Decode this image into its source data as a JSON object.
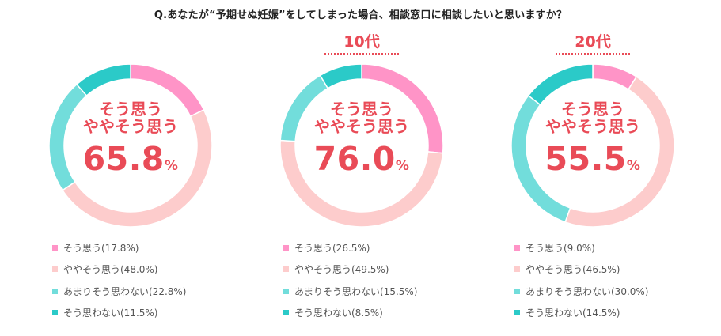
{
  "title": "Q.あなたが“予期せぬ妊娠”をしてしまった場合、相談窓口に相談したいと思いますか？",
  "colors": {
    "sou_omou": "#ff94c7",
    "yaya_sou_omou": "#fdcccc",
    "amari": "#72dddb",
    "omowanai": "#2bcac8",
    "accent": "#e94b57"
  },
  "chart_data": [
    {
      "type": "pie",
      "heading": "",
      "center_line1": "そう思う",
      "center_line2": "ややそう思う",
      "center_value": "65.8",
      "center_unit": "%",
      "categories": [
        "そう思う",
        "ややそう思う",
        "あまりそう思わない",
        "そう思わない"
      ],
      "values": [
        17.8,
        48.0,
        22.8,
        11.5
      ],
      "legend": [
        "そう思う(17.8%)",
        "ややそう思う(48.0%)",
        "あまりそう思わない(22.8%)",
        "そう思わない(11.5%)"
      ]
    },
    {
      "type": "pie",
      "heading": "10代",
      "center_line1": "そう思う",
      "center_line2": "ややそう思う",
      "center_value": "76.0",
      "center_unit": "%",
      "categories": [
        "そう思う",
        "ややそう思う",
        "あまりそう思わない",
        "そう思わない"
      ],
      "values": [
        26.5,
        49.5,
        15.5,
        8.5
      ],
      "legend": [
        "そう思う(26.5%)",
        "ややそう思う(49.5%)",
        "あまりそう思わない(15.5%)",
        "そう思わない(8.5%)"
      ]
    },
    {
      "type": "pie",
      "heading": "20代",
      "center_line1": "そう思う",
      "center_line2": "ややそう思う",
      "center_value": "55.5",
      "center_unit": "%",
      "categories": [
        "そう思う",
        "ややそう思う",
        "あまりそう思わない",
        "そう思わない"
      ],
      "values": [
        9.0,
        46.5,
        30.0,
        14.5
      ],
      "legend": [
        "そう思う(9.0%)",
        "ややそう思う(46.5%)",
        "あまりそう思わない(30.0%)",
        "そう思わない(14.5%)"
      ]
    }
  ]
}
